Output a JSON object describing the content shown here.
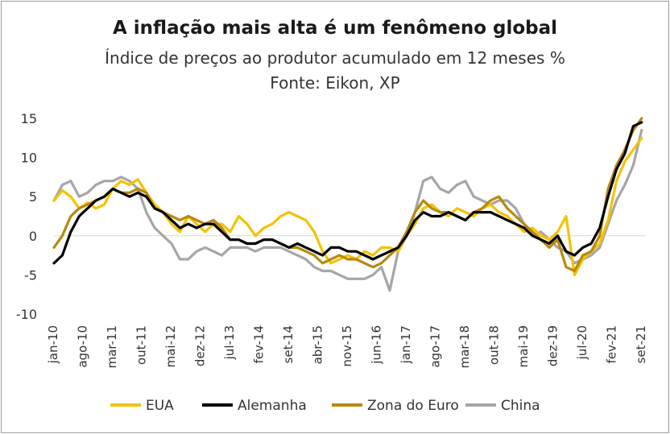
{
  "title": "A inflação mais alta é um fenômeno global",
  "subtitle": "Índice de preços ao produtor acumulado em 12 meses %",
  "source": "Fonte: Eikon, XP",
  "chart_data": {
    "type": "line",
    "title": "A inflação mais alta é um fenômeno global",
    "ylim": [
      -10,
      15
    ],
    "yticks": [
      15,
      10,
      5,
      0,
      -5,
      -10
    ],
    "ytick_labels": [
      "15",
      "10",
      "5",
      "0",
      "-5",
      "-10"
    ],
    "x_start": "2010-01",
    "x_end": "2021-10",
    "xtick_labels": [
      "jan-10",
      "ago-10",
      "mar-11",
      "out-11",
      "mai-12",
      "dez-12",
      "jul-13",
      "fev-14",
      "set-14",
      "abr-15",
      "nov-15",
      "jun-16",
      "jan-17",
      "ago-17",
      "mar-18",
      "out-18",
      "mai-19",
      "dez-19",
      "jul-20",
      "fev-21",
      "set-21"
    ],
    "legend_position": "bottom",
    "grid": false,
    "series": [
      {
        "name": "EUA",
        "color": "#F5C200",
        "keypoints": [
          [
            0,
            4.5
          ],
          [
            2,
            5.8
          ],
          [
            4,
            5
          ],
          [
            6,
            3.5
          ],
          [
            8,
            4.2
          ],
          [
            10,
            3.5
          ],
          [
            12,
            4
          ],
          [
            14,
            6
          ],
          [
            16,
            7
          ],
          [
            18,
            6.5
          ],
          [
            20,
            7.2
          ],
          [
            22,
            5.5
          ],
          [
            24,
            4
          ],
          [
            26,
            3
          ],
          [
            28,
            1.5
          ],
          [
            30,
            0.5
          ],
          [
            32,
            2.5
          ],
          [
            34,
            1.5
          ],
          [
            36,
            0.5
          ],
          [
            38,
            1.5
          ],
          [
            40,
            1.5
          ],
          [
            42,
            0.5
          ],
          [
            44,
            2.5
          ],
          [
            46,
            1.5
          ],
          [
            48,
            0
          ],
          [
            50,
            1
          ],
          [
            52,
            1.5
          ],
          [
            54,
            2.5
          ],
          [
            56,
            3
          ],
          [
            58,
            2.5
          ],
          [
            60,
            2
          ],
          [
            62,
            0.5
          ],
          [
            64,
            -2
          ],
          [
            66,
            -3.5
          ],
          [
            68,
            -3
          ],
          [
            70,
            -2.5
          ],
          [
            72,
            -3
          ],
          [
            74,
            -2
          ],
          [
            76,
            -2.5
          ],
          [
            78,
            -1.5
          ],
          [
            80,
            -1.5
          ],
          [
            82,
            -2
          ],
          [
            84,
            0
          ],
          [
            86,
            1.5
          ],
          [
            88,
            3.5
          ],
          [
            90,
            4
          ],
          [
            92,
            3
          ],
          [
            94,
            2.5
          ],
          [
            96,
            3.5
          ],
          [
            98,
            3
          ],
          [
            100,
            2.5
          ],
          [
            102,
            3.5
          ],
          [
            104,
            4
          ],
          [
            106,
            3
          ],
          [
            108,
            2.5
          ],
          [
            110,
            1.5
          ],
          [
            112,
            0.5
          ],
          [
            114,
            1
          ],
          [
            116,
            0
          ],
          [
            118,
            -0.5
          ],
          [
            120,
            0.5
          ],
          [
            122,
            2.5
          ],
          [
            124,
            -5
          ],
          [
            126,
            -3
          ],
          [
            128,
            -2
          ],
          [
            130,
            -1
          ],
          [
            132,
            2
          ],
          [
            134,
            7
          ],
          [
            136,
            9.5
          ],
          [
            138,
            11
          ],
          [
            140,
            12.5
          ]
        ]
      },
      {
        "name": "Alemanha",
        "color": "#000000",
        "keypoints": [
          [
            0,
            -3.5
          ],
          [
            2,
            -2.5
          ],
          [
            4,
            0.5
          ],
          [
            6,
            2.5
          ],
          [
            8,
            3.5
          ],
          [
            10,
            4.5
          ],
          [
            12,
            5
          ],
          [
            14,
            6
          ],
          [
            16,
            5.5
          ],
          [
            18,
            5
          ],
          [
            20,
            5.5
          ],
          [
            22,
            5
          ],
          [
            24,
            3.5
          ],
          [
            26,
            3
          ],
          [
            28,
            2
          ],
          [
            30,
            1
          ],
          [
            32,
            1.5
          ],
          [
            34,
            1
          ],
          [
            36,
            1.5
          ],
          [
            38,
            1.5
          ],
          [
            40,
            0.5
          ],
          [
            42,
            -0.5
          ],
          [
            44,
            -0.5
          ],
          [
            46,
            -1
          ],
          [
            48,
            -1
          ],
          [
            50,
            -0.5
          ],
          [
            52,
            -0.5
          ],
          [
            54,
            -1
          ],
          [
            56,
            -1.5
          ],
          [
            58,
            -1
          ],
          [
            60,
            -1.5
          ],
          [
            62,
            -2
          ],
          [
            64,
            -2.5
          ],
          [
            66,
            -1.5
          ],
          [
            68,
            -1.5
          ],
          [
            70,
            -2
          ],
          [
            72,
            -2
          ],
          [
            74,
            -2.5
          ],
          [
            76,
            -3
          ],
          [
            78,
            -2.5
          ],
          [
            80,
            -2
          ],
          [
            82,
            -1.5
          ],
          [
            84,
            0
          ],
          [
            86,
            2
          ],
          [
            88,
            3
          ],
          [
            90,
            2.5
          ],
          [
            92,
            2.5
          ],
          [
            94,
            3
          ],
          [
            96,
            2.5
          ],
          [
            98,
            2
          ],
          [
            100,
            3
          ],
          [
            102,
            3
          ],
          [
            104,
            3
          ],
          [
            106,
            2.5
          ],
          [
            108,
            2
          ],
          [
            110,
            1.5
          ],
          [
            112,
            1
          ],
          [
            114,
            0
          ],
          [
            116,
            -0.5
          ],
          [
            118,
            -1
          ],
          [
            120,
            0
          ],
          [
            122,
            -2
          ],
          [
            124,
            -2.5
          ],
          [
            126,
            -1.5
          ],
          [
            128,
            -1
          ],
          [
            130,
            1
          ],
          [
            132,
            5
          ],
          [
            134,
            8.5
          ],
          [
            136,
            10.5
          ],
          [
            138,
            14
          ],
          [
            140,
            14.5
          ]
        ]
      },
      {
        "name": "Zona do Euro",
        "color": "#B8890B",
        "keypoints": [
          [
            0,
            -1.5
          ],
          [
            2,
            0
          ],
          [
            4,
            2.5
          ],
          [
            6,
            3.5
          ],
          [
            8,
            4
          ],
          [
            10,
            4.5
          ],
          [
            12,
            5
          ],
          [
            14,
            6
          ],
          [
            16,
            5.5
          ],
          [
            18,
            5.5
          ],
          [
            20,
            6
          ],
          [
            22,
            5.5
          ],
          [
            24,
            3.5
          ],
          [
            26,
            3
          ],
          [
            28,
            2.5
          ],
          [
            30,
            2
          ],
          [
            32,
            2.5
          ],
          [
            34,
            2
          ],
          [
            36,
            1.5
          ],
          [
            38,
            2
          ],
          [
            40,
            1
          ],
          [
            42,
            -0.5
          ],
          [
            44,
            -0.5
          ],
          [
            46,
            -1
          ],
          [
            48,
            -1
          ],
          [
            50,
            -0.5
          ],
          [
            52,
            -0.5
          ],
          [
            54,
            -1
          ],
          [
            56,
            -1.5
          ],
          [
            58,
            -1.5
          ],
          [
            60,
            -2
          ],
          [
            62,
            -2.5
          ],
          [
            64,
            -3.5
          ],
          [
            66,
            -3
          ],
          [
            68,
            -2.5
          ],
          [
            70,
            -3
          ],
          [
            72,
            -3
          ],
          [
            74,
            -3.5
          ],
          [
            76,
            -4
          ],
          [
            78,
            -3.5
          ],
          [
            80,
            -2.5
          ],
          [
            82,
            -1.5
          ],
          [
            84,
            0.5
          ],
          [
            86,
            3
          ],
          [
            88,
            4.5
          ],
          [
            90,
            3.5
          ],
          [
            92,
            3
          ],
          [
            94,
            3
          ],
          [
            96,
            2.5
          ],
          [
            98,
            2
          ],
          [
            100,
            3
          ],
          [
            102,
            3.5
          ],
          [
            104,
            4.5
          ],
          [
            106,
            5
          ],
          [
            108,
            3.5
          ],
          [
            110,
            2.5
          ],
          [
            112,
            1.5
          ],
          [
            114,
            0.5
          ],
          [
            116,
            -0.5
          ],
          [
            118,
            -1.5
          ],
          [
            120,
            -0.5
          ],
          [
            122,
            -4
          ],
          [
            124,
            -4.5
          ],
          [
            126,
            -2.5
          ],
          [
            128,
            -2
          ],
          [
            130,
            0
          ],
          [
            132,
            6
          ],
          [
            134,
            9
          ],
          [
            136,
            11
          ],
          [
            138,
            13.5
          ],
          [
            140,
            15
          ]
        ]
      },
      {
        "name": "China",
        "color": "#A6A6A6",
        "keypoints": [
          [
            0,
            4.5
          ],
          [
            2,
            6.5
          ],
          [
            4,
            7
          ],
          [
            6,
            5
          ],
          [
            8,
            5.5
          ],
          [
            10,
            6.5
          ],
          [
            12,
            7
          ],
          [
            14,
            7
          ],
          [
            16,
            7.5
          ],
          [
            18,
            7
          ],
          [
            20,
            6
          ],
          [
            22,
            3
          ],
          [
            24,
            1
          ],
          [
            26,
            0
          ],
          [
            28,
            -1
          ],
          [
            30,
            -3
          ],
          [
            32,
            -3
          ],
          [
            34,
            -2
          ],
          [
            36,
            -1.5
          ],
          [
            38,
            -2
          ],
          [
            40,
            -2.5
          ],
          [
            42,
            -1.5
          ],
          [
            44,
            -1.5
          ],
          [
            46,
            -1.5
          ],
          [
            48,
            -2
          ],
          [
            50,
            -1.5
          ],
          [
            52,
            -1.5
          ],
          [
            54,
            -1.5
          ],
          [
            56,
            -2
          ],
          [
            58,
            -2.5
          ],
          [
            60,
            -3
          ],
          [
            62,
            -4
          ],
          [
            64,
            -4.5
          ],
          [
            66,
            -4.5
          ],
          [
            68,
            -5
          ],
          [
            70,
            -5.5
          ],
          [
            72,
            -5.5
          ],
          [
            74,
            -5.5
          ],
          [
            76,
            -5
          ],
          [
            78,
            -4
          ],
          [
            80,
            -7
          ],
          [
            82,
            -2
          ],
          [
            84,
            0
          ],
          [
            86,
            3
          ],
          [
            88,
            7
          ],
          [
            90,
            7.5
          ],
          [
            92,
            6
          ],
          [
            94,
            5.5
          ],
          [
            96,
            6.5
          ],
          [
            98,
            7
          ],
          [
            100,
            5
          ],
          [
            102,
            4.5
          ],
          [
            104,
            4
          ],
          [
            106,
            4.5
          ],
          [
            108,
            4.5
          ],
          [
            110,
            3.5
          ],
          [
            112,
            1.5
          ],
          [
            114,
            0
          ],
          [
            116,
            0.5
          ],
          [
            118,
            -0.5
          ],
          [
            120,
            -1.5
          ],
          [
            122,
            -2
          ],
          [
            124,
            -3.5
          ],
          [
            126,
            -3
          ],
          [
            128,
            -2.5
          ],
          [
            130,
            -1.5
          ],
          [
            132,
            1.5
          ],
          [
            134,
            4.5
          ],
          [
            136,
            6.5
          ],
          [
            138,
            9
          ],
          [
            140,
            13.5
          ]
        ]
      }
    ]
  }
}
